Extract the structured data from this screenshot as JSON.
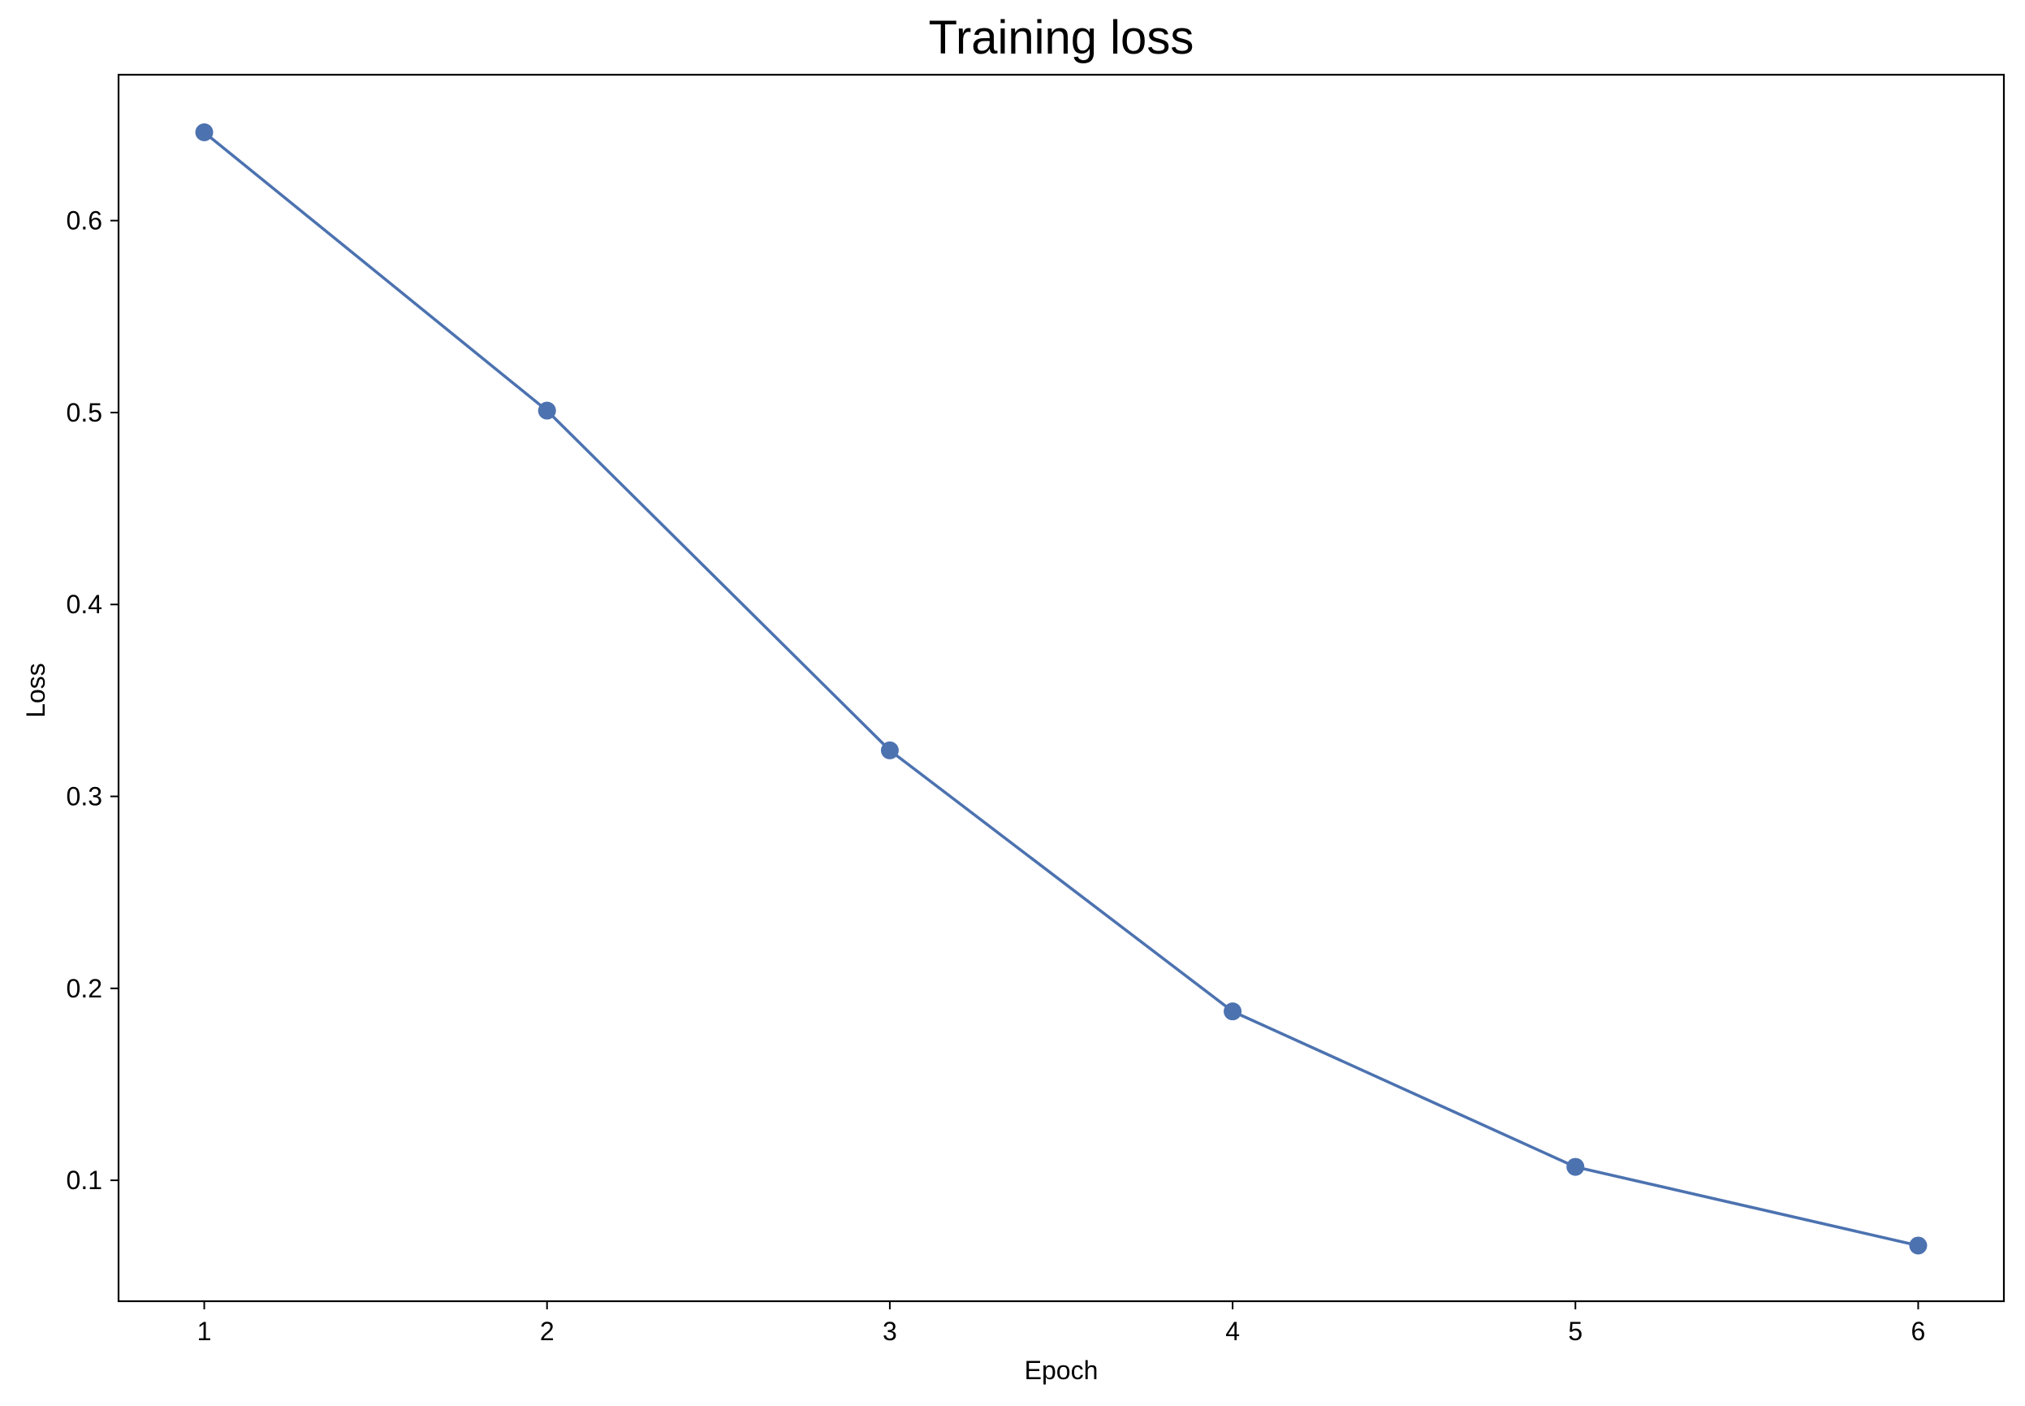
{
  "chart_data": {
    "type": "line",
    "title": "Training loss",
    "xlabel": "Epoch",
    "ylabel": "Loss",
    "x": [
      1,
      2,
      3,
      4,
      5,
      6
    ],
    "series": [
      {
        "values": [
          0.646,
          0.501,
          0.324,
          0.188,
          0.107,
          0.066
        ],
        "color": "#4c72b0",
        "marker": "circle"
      }
    ],
    "xlim": [
      0.75,
      6.25
    ],
    "ylim": [
      0.037,
      0.676
    ],
    "xticks": [
      1,
      2,
      3,
      4,
      5,
      6
    ],
    "xtick_labels": [
      "1",
      "2",
      "3",
      "4",
      "5",
      "6"
    ],
    "yticks": [
      0.1,
      0.2,
      0.3,
      0.4,
      0.5,
      0.6
    ],
    "ytick_labels": [
      "0.1",
      "0.2",
      "0.3",
      "0.4",
      "0.5",
      "0.6"
    ],
    "grid": false,
    "legend": "none"
  }
}
